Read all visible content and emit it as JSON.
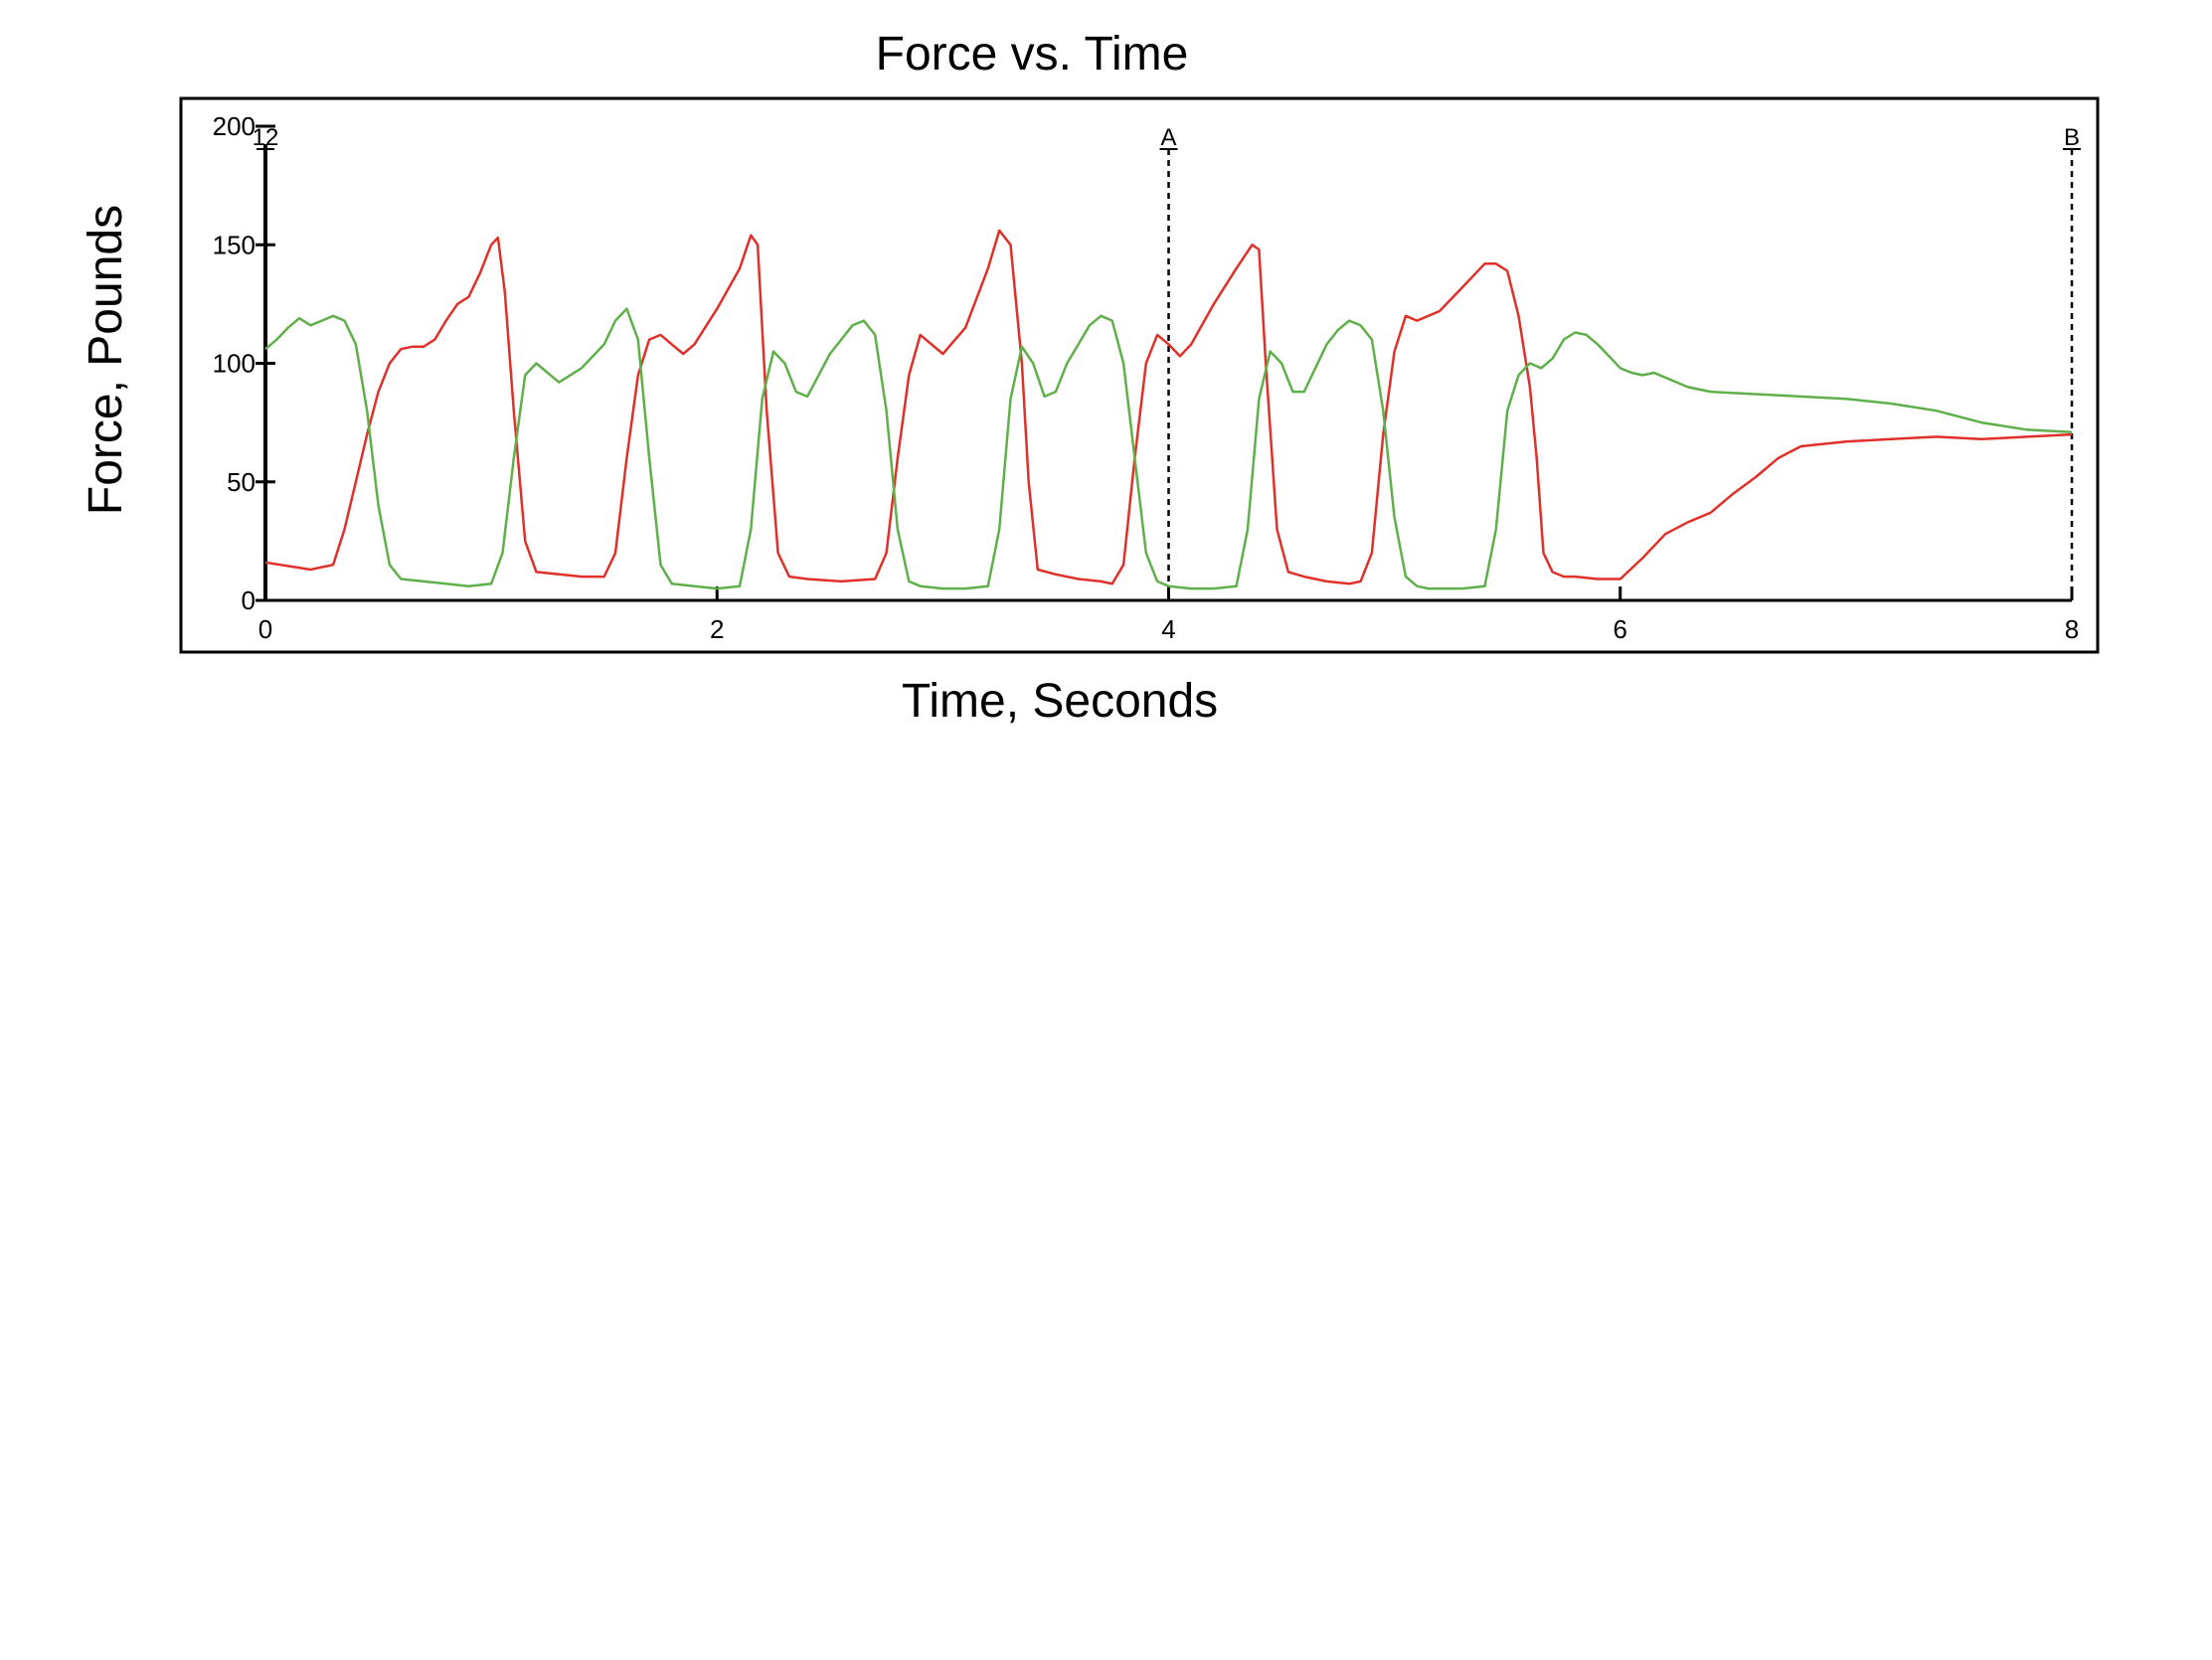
{
  "chart_data": {
    "type": "line",
    "title": "Force vs. Time",
    "xlabel": "Time, Seconds",
    "ylabel": "Force, Pounds",
    "xlim": [
      0,
      8
    ],
    "ylim": [
      0,
      200
    ],
    "xticks": [
      "0",
      "2",
      "4",
      "6",
      "8"
    ],
    "yticks": [
      "0",
      "50",
      "100",
      "150",
      "200"
    ],
    "grid": false,
    "markers": [
      {
        "label": "12",
        "x": 0
      },
      {
        "label": "A",
        "x": 4
      },
      {
        "label": "B",
        "x": 8
      }
    ],
    "series": [
      {
        "color": "#e0302a",
        "x": [
          0,
          0.2,
          0.3,
          0.35,
          0.4,
          0.45,
          0.5,
          0.55,
          0.6,
          0.65,
          0.7,
          0.75,
          0.8,
          0.85,
          0.9,
          0.95,
          1.0,
          1.03,
          1.06,
          1.1,
          1.15,
          1.2,
          1.3,
          1.4,
          1.5,
          1.55,
          1.6,
          1.65,
          1.7,
          1.75,
          1.8,
          1.85,
          1.9,
          2.0,
          2.1,
          2.15,
          2.18,
          2.22,
          2.27,
          2.32,
          2.4,
          2.55,
          2.7,
          2.75,
          2.8,
          2.85,
          2.9,
          2.95,
          3.0,
          3.1,
          3.2,
          3.25,
          3.3,
          3.35,
          3.38,
          3.42,
          3.5,
          3.6,
          3.7,
          3.75,
          3.8,
          3.85,
          3.9,
          3.95,
          4.0,
          4.05,
          4.1,
          4.2,
          4.3,
          4.37,
          4.4,
          4.43,
          4.48,
          4.53,
          4.6,
          4.7,
          4.8,
          4.85,
          4.9,
          4.95,
          5.0,
          5.05,
          5.1,
          5.15,
          5.2,
          5.3,
          5.4,
          5.45,
          5.5,
          5.55,
          5.6,
          5.63,
          5.66,
          5.7,
          5.75,
          5.8,
          5.9,
          6.0,
          6.1,
          6.2,
          6.3,
          6.4,
          6.5,
          6.6,
          6.7,
          6.8,
          7.0,
          7.2,
          7.4,
          7.6,
          7.8,
          8.0
        ],
        "y": [
          16,
          13,
          15,
          30,
          50,
          70,
          88,
          100,
          106,
          107,
          107,
          110,
          118,
          125,
          128,
          138,
          150,
          153,
          130,
          80,
          25,
          12,
          11,
          10,
          10,
          20,
          60,
          95,
          110,
          112,
          108,
          104,
          108,
          123,
          140,
          154,
          150,
          80,
          20,
          10,
          9,
          8,
          9,
          20,
          60,
          95,
          112,
          108,
          104,
          115,
          140,
          156,
          150,
          100,
          50,
          13,
          11,
          9,
          8,
          7,
          15,
          60,
          100,
          112,
          108,
          103,
          108,
          125,
          140,
          150,
          148,
          100,
          30,
          12,
          10,
          8,
          7,
          8,
          20,
          70,
          105,
          120,
          118,
          120,
          122,
          132,
          142,
          142,
          139,
          120,
          90,
          60,
          20,
          12,
          10,
          10,
          9,
          9,
          18,
          28,
          33,
          37,
          45,
          52,
          60,
          65,
          67,
          68,
          69,
          68,
          69,
          70
        ]
      },
      {
        "color": "#5fb04a",
        "x": [
          0,
          0.05,
          0.1,
          0.15,
          0.2,
          0.25,
          0.3,
          0.35,
          0.4,
          0.45,
          0.5,
          0.55,
          0.6,
          0.7,
          0.8,
          0.9,
          1.0,
          1.05,
          1.1,
          1.15,
          1.2,
          1.3,
          1.4,
          1.5,
          1.55,
          1.6,
          1.65,
          1.7,
          1.75,
          1.8,
          1.9,
          2.0,
          2.1,
          2.15,
          2.2,
          2.25,
          2.3,
          2.35,
          2.4,
          2.45,
          2.5,
          2.55,
          2.6,
          2.65,
          2.7,
          2.75,
          2.8,
          2.85,
          2.9,
          3.0,
          3.1,
          3.2,
          3.25,
          3.3,
          3.35,
          3.4,
          3.45,
          3.5,
          3.55,
          3.6,
          3.65,
          3.7,
          3.75,
          3.8,
          3.85,
          3.9,
          3.95,
          4.0,
          4.1,
          4.2,
          4.3,
          4.35,
          4.4,
          4.45,
          4.5,
          4.55,
          4.6,
          4.65,
          4.7,
          4.75,
          4.8,
          4.85,
          4.9,
          4.95,
          5.0,
          5.05,
          5.1,
          5.15,
          5.2,
          5.3,
          5.4,
          5.45,
          5.5,
          5.55,
          5.6,
          5.65,
          5.7,
          5.75,
          5.8,
          5.85,
          5.9,
          5.95,
          6.0,
          6.05,
          6.1,
          6.15,
          6.2,
          6.25,
          6.3,
          6.4,
          6.6,
          6.8,
          7.0,
          7.2,
          7.4,
          7.6,
          7.8,
          8.0
        ],
        "y": [
          106,
          110,
          115,
          119,
          116,
          118,
          120,
          118,
          108,
          80,
          40,
          15,
          9,
          8,
          7,
          6,
          7,
          20,
          60,
          95,
          100,
          92,
          98,
          108,
          118,
          123,
          110,
          60,
          15,
          7,
          6,
          5,
          6,
          30,
          85,
          105,
          100,
          88,
          86,
          95,
          104,
          110,
          116,
          118,
          112,
          80,
          30,
          8,
          6,
          5,
          5,
          6,
          30,
          85,
          107,
          100,
          86,
          88,
          100,
          108,
          116,
          120,
          118,
          100,
          60,
          20,
          8,
          6,
          5,
          5,
          6,
          30,
          85,
          105,
          100,
          88,
          88,
          98,
          108,
          114,
          118,
          116,
          110,
          80,
          35,
          10,
          6,
          5,
          5,
          5,
          6,
          30,
          80,
          95,
          100,
          98,
          102,
          110,
          113,
          112,
          108,
          103,
          98,
          96,
          95,
          96,
          94,
          92,
          90,
          88,
          87,
          86,
          85,
          83,
          80,
          75,
          72,
          71
        ]
      }
    ]
  }
}
